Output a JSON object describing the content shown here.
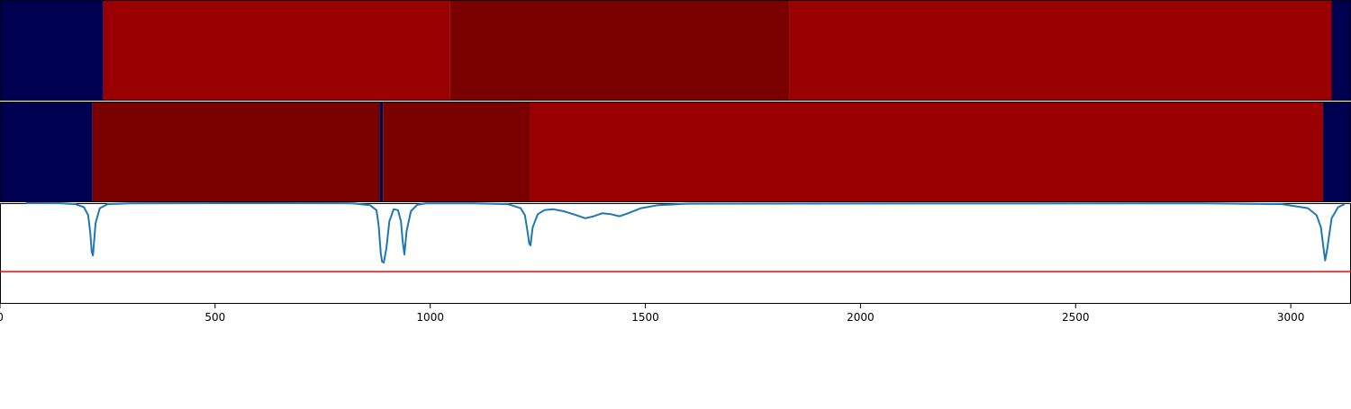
{
  "chart_data": {
    "type": "heatmap",
    "xlim": [
      0,
      3140
    ],
    "x_ticks": [
      0,
      500,
      1000,
      1500,
      2000,
      2500,
      3000
    ],
    "x_tick_labels": [
      "0",
      "500",
      "1000",
      "1500",
      "2000",
      "2500",
      "3000"
    ],
    "colors": {
      "background": "#000050",
      "segment_light": "#9b0000",
      "segment_dark": "#7a0000",
      "signal_line": "#1f77b4",
      "threshold_line": "#ff0000"
    },
    "tracks": [
      {
        "segments": [
          {
            "start": 0,
            "end": 240,
            "level": "background"
          },
          {
            "start": 240,
            "end": 1045,
            "level": "light"
          },
          {
            "start": 1045,
            "end": 1835,
            "level": "dark"
          },
          {
            "start": 1835,
            "end": 3095,
            "level": "light"
          },
          {
            "start": 3095,
            "end": 3140,
            "level": "background"
          }
        ]
      },
      {
        "segments": [
          {
            "start": 0,
            "end": 215,
            "level": "background"
          },
          {
            "start": 215,
            "end": 882,
            "level": "dark"
          },
          {
            "start": 882,
            "end": 890,
            "level": "background"
          },
          {
            "start": 890,
            "end": 1232,
            "level": "dark"
          },
          {
            "start": 1232,
            "end": 3075,
            "level": "light"
          },
          {
            "start": 3075,
            "end": 3140,
            "level": "background"
          }
        ]
      }
    ],
    "signal": {
      "ylim": [
        0,
        1
      ],
      "threshold": 0.32,
      "x": [
        60,
        140,
        175,
        195,
        205,
        210,
        213,
        216,
        222,
        232,
        250,
        300,
        600,
        820,
        860,
        875,
        880,
        885,
        888,
        892,
        898,
        905,
        915,
        925,
        932,
        936,
        940,
        945,
        955,
        970,
        990,
        1100,
        1180,
        1210,
        1220,
        1226,
        1230,
        1233,
        1238,
        1250,
        1265,
        1285,
        1310,
        1340,
        1360,
        1380,
        1400,
        1420,
        1440,
        1460,
        1490,
        1530,
        1600,
        2800,
        2980,
        3040,
        3060,
        3070,
        3076,
        3080,
        3085,
        3095,
        3110,
        3125
      ],
      "y": [
        1.0,
        0.999,
        0.99,
        0.96,
        0.88,
        0.7,
        0.52,
        0.48,
        0.8,
        0.95,
        0.99,
        0.998,
        1.0,
        0.998,
        0.98,
        0.93,
        0.78,
        0.5,
        0.42,
        0.41,
        0.55,
        0.82,
        0.94,
        0.93,
        0.82,
        0.62,
        0.49,
        0.72,
        0.92,
        0.985,
        0.998,
        0.998,
        0.99,
        0.95,
        0.88,
        0.72,
        0.6,
        0.58,
        0.76,
        0.89,
        0.93,
        0.94,
        0.92,
        0.88,
        0.85,
        0.87,
        0.9,
        0.89,
        0.87,
        0.9,
        0.95,
        0.98,
        0.995,
        0.998,
        0.99,
        0.95,
        0.88,
        0.76,
        0.56,
        0.43,
        0.55,
        0.85,
        0.96,
        0.99
      ]
    }
  }
}
